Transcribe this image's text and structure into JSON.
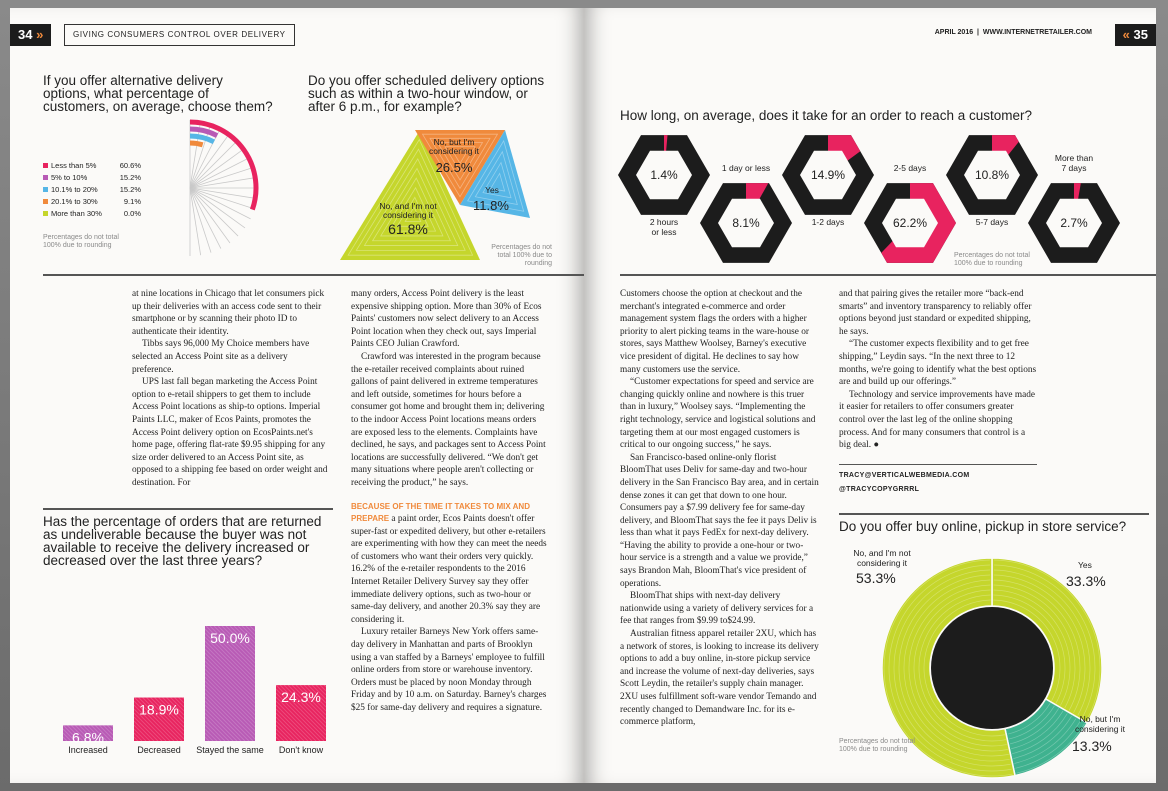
{
  "left": {
    "page_number": "34",
    "section_title": "GIVING CONSUMERS CONTROL OVER DELIVERY",
    "q1": {
      "title": "If you offer alternative delivery options, what percentage of customers, on average, choose them?",
      "note": "Percentages do not total 100% due to rounding",
      "legend": [
        {
          "label": "Less than 5%",
          "value": "60.6%",
          "color": "#e8235f"
        },
        {
          "label": "5% to 10%",
          "value": "15.2%",
          "color": "#b85ab5"
        },
        {
          "label": "10.1% to 20%",
          "value": "15.2%",
          "color": "#56b6e6"
        },
        {
          "label": "20.1% to 30%",
          "value": "9.1%",
          "color": "#f08a3c"
        },
        {
          "label": "More than 30%",
          "value": "0.0%",
          "color": "#c5d62c"
        }
      ]
    },
    "q2": {
      "title": "Do you offer scheduled delivery options such as within a two-hour window, or after 6 p.m., for example?",
      "note": "Percentages do not total 100% due to rounding",
      "items": [
        {
          "label": "No, but I'm considering it",
          "value": "26.5%",
          "color": "#f08a3c"
        },
        {
          "label": "Yes",
          "value": "11.8%",
          "color": "#56b6e6"
        },
        {
          "label": "No, and I'm not considering it",
          "value": "61.8%",
          "color": "#c5d62c"
        }
      ]
    },
    "q3": {
      "title": "Has the percentage of orders that are returned as undeliverable because the buyer was not available to receive the delivery increased or decreased over the last three years?",
      "chart_data": {
        "type": "bar",
        "categories": [
          "Increased",
          "Decreased",
          "Stayed the same",
          "Don't know"
        ],
        "values": [
          6.8,
          18.9,
          50.0,
          24.3
        ],
        "value_labels": [
          "6.8%",
          "18.9%",
          "50.0%",
          "24.3%"
        ],
        "colors": [
          "#b85ab5",
          "#e8235f",
          "#b85ab5",
          "#e8235f"
        ],
        "ylim": [
          0,
          50
        ]
      }
    },
    "col1": [
      "at nine locations in Chicago that let consumers pick up their deliveries with an access code sent to their smartphone or by scanning their photo ID to authenticate their identity.",
      "Tibbs says 96,000 My Choice members have selected an Access Point site as a delivery preference.",
      "UPS last fall began marketing the Access Point option to e-retail shippers to get them to include Access Point locations as ship-to options. Imperial Paints LLC, maker of Ecos Paints, promotes the Access Point delivery option on EcosPaints.net's home page, offering flat-rate $9.95 shipping for any size order delivered to an Access Point site, as opposed to a shipping fee based on order weight and destination. For"
    ],
    "col2": [
      "many orders, Access Point delivery is the least expensive shipping option. More than 30% of Ecos Paints' customers now select delivery to an Access Point location when they check out, says Imperial Paints CEO Julian Crawford.",
      "Crawford was interested in the program because the e-retailer received complaints about ruined gallons of paint delivered in extreme temperatures and left outside, sometimes for hours before a consumer got home and brought them in; delivering to the indoor Access Point locations means orders are exposed less to the elements. Complaints have declined, he says, and packages sent to Access Point locations are successfully delivered. “We don't get many situations where people aren't collecting or receiving the product,” he says."
    ],
    "col2_leadin": "BECAUSE OF THE TIME IT TAKES TO MIX AND PREPARE",
    "col2_leadin_rest": " a paint order, Ecos Paints doesn't offer super-fast or expedited delivery, but other e-retailers are experimenting with how they can meet the needs of customers who want their orders very quickly. 16.2% of the e-retailer respondents to the 2016 Internet Retailer Delivery Survey say they offer immediate delivery options, such as two-hour or same-day delivery, and another 20.3% say they are considering it.",
    "col2b": [
      "Luxury retailer Barneys New York offers same-day delivery in Manhattan and parts of Brooklyn using a van staffed by a Barneys' employee to fulfill online orders from store or warehouse inventory. Orders must be placed by noon Monday through Friday and by 10 a.m. on Saturday. Barney's charges $25 for same-day delivery and requires a signature."
    ]
  },
  "right": {
    "header_date": "APRIL 2016",
    "header_site": "WWW.INTERNETRETAILER.COM",
    "page_number": "35",
    "q4": {
      "title": "How long, on average, does it take for an order to reach a customer?",
      "note": "Percentages do not total 100% due to rounding",
      "chart_data": {
        "type": "pie",
        "categories": [
          "2 hours or less",
          "1 day or less",
          "1-2 days",
          "2-5 days",
          "5-7 days",
          "More than 7 days"
        ],
        "values": [
          1.4,
          8.1,
          14.9,
          62.2,
          10.8,
          2.7
        ],
        "value_labels": [
          "1.4%",
          "8.1%",
          "14.9%",
          "62.2%",
          "10.8%",
          "2.7%"
        ]
      }
    },
    "col3": [
      "Customers choose the option at checkout and the merchant's integrated e-commerce and order management system flags the orders with a higher priority to alert picking teams in the ware-house or stores, says Matthew Woolsey, Barney's executive vice president of digital. He declines to say how many customers use the service.",
      "“Customer expectations for speed and service are changing quickly online and nowhere is this truer than in luxury,” Woolsey says. “Implementing the right technology, service and logistical solutions and targeting them at our most engaged customers is critical to our ongoing success,” he says.",
      "San Francisco-based online-only florist BloomThat uses Deliv for same-day and two-hour delivery in the San Francisco Bay area, and in certain dense zones it can get that down to one hour. Consumers pay a $7.99 delivery fee for same-day delivery, and BloomThat says the fee it pays Deliv is less than what it pays FedEx for next-day delivery. “Having the ability to provide a one-hour or two-hour service is a strength and a value we provide,” says Brandon Mah, BloomThat's vice president of operations.",
      "BloomThat ships with next-day delivery nationwide using a variety of delivery services for a fee that ranges from $9.99 to$24.99.",
      "Australian fitness apparel retailer 2XU, which has a network of stores, is looking to increase its delivery options to add a buy online, in-store pickup service and increase the volume of next-day deliveries, says Scott Leydin, the retailer's supply chain manager. 2XU uses fulfillment soft-ware vendor Temando and recently changed to Demandware Inc. for its e-commerce platform,"
    ],
    "col4": [
      "and that pairing gives the retailer more “back-end smarts” and inventory transparency to reliably offer options beyond just standard or expedited shipping, he says.",
      "“The customer expects flexibility and to get free shipping,” Leydin says. “In the next three to 12 months, we're going to identify what the best options are and build up our offerings.”",
      "Technology and service improvements have made it easier for retailers to offer consumers greater control over the last leg of the online shopping process. And for many consumers that control is a big deal. ●"
    ],
    "credit_email": "TRACY@VERTICALWEBMEDIA.COM",
    "credit_handle": "@TRACYCOPYGRRRL",
    "q5": {
      "title": "Do you offer buy online, pickup in store service?",
      "note": "Percentages do not total 100% due to rounding",
      "chart_data": {
        "type": "pie",
        "categories": [
          "Yes",
          "No, but I'm considering it",
          "No, and I'm not considering it"
        ],
        "values": [
          33.3,
          13.3,
          53.3
        ],
        "value_labels": [
          "33.3%",
          "13.3%",
          "53.3%"
        ],
        "colors": [
          "#c5d62c",
          "#3fb28f",
          "#c5d62c"
        ]
      }
    }
  }
}
